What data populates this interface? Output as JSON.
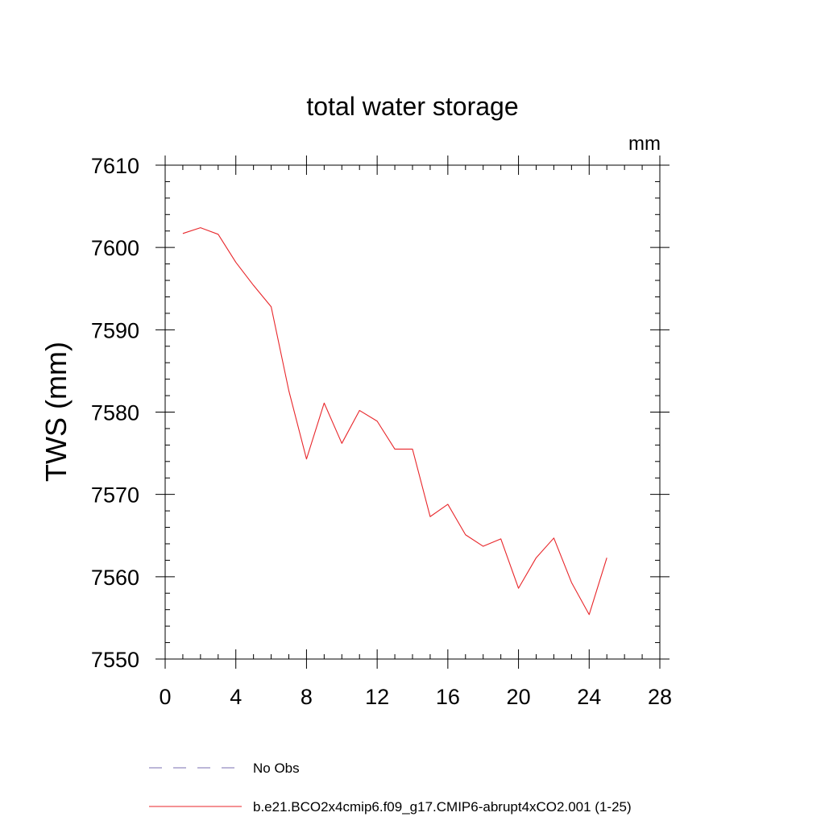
{
  "chart_data": {
    "type": "line",
    "title": "total water storage",
    "units_label": "mm",
    "ylabel": "TWS  (mm)",
    "xlabel": "",
    "xlim": [
      0,
      28
    ],
    "ylim": [
      7550,
      7610
    ],
    "x_ticks": [
      0,
      4,
      8,
      12,
      16,
      20,
      24,
      28
    ],
    "x_tick_labels": [
      "0",
      "4",
      "8",
      "12",
      "16",
      "20",
      "24",
      "28"
    ],
    "y_ticks": [
      7550,
      7560,
      7570,
      7580,
      7590,
      7600,
      7610
    ],
    "y_tick_labels": [
      "7550",
      "7560",
      "7570",
      "7580",
      "7590",
      "7600",
      "7610"
    ],
    "grid": false,
    "legend_position": "bottom",
    "series": [
      {
        "name": "No Obs",
        "style": "dashed",
        "color": "#7a6fb0",
        "x": [],
        "values": []
      },
      {
        "name": "b.e21.BCO2x4cmip6.f09_g17.CMIP6-abrupt4xCO2.001 (1-25)",
        "style": "solid",
        "color": "#e8262a",
        "x": [
          1,
          2,
          3,
          4,
          5,
          6,
          7,
          8,
          9,
          10,
          11,
          12,
          13,
          14,
          15,
          16,
          17,
          18,
          19,
          20,
          21,
          22,
          23,
          24,
          25
        ],
        "values": [
          7601.7,
          7602.4,
          7601.6,
          7598.2,
          7595.4,
          7592.8,
          7582.6,
          7574.3,
          7581.1,
          7576.2,
          7580.2,
          7578.9,
          7575.5,
          7575.5,
          7567.3,
          7568.8,
          7565.1,
          7563.7,
          7564.6,
          7558.6,
          7562.3,
          7564.7,
          7559.3,
          7555.4,
          7562.3
        ]
      }
    ]
  }
}
